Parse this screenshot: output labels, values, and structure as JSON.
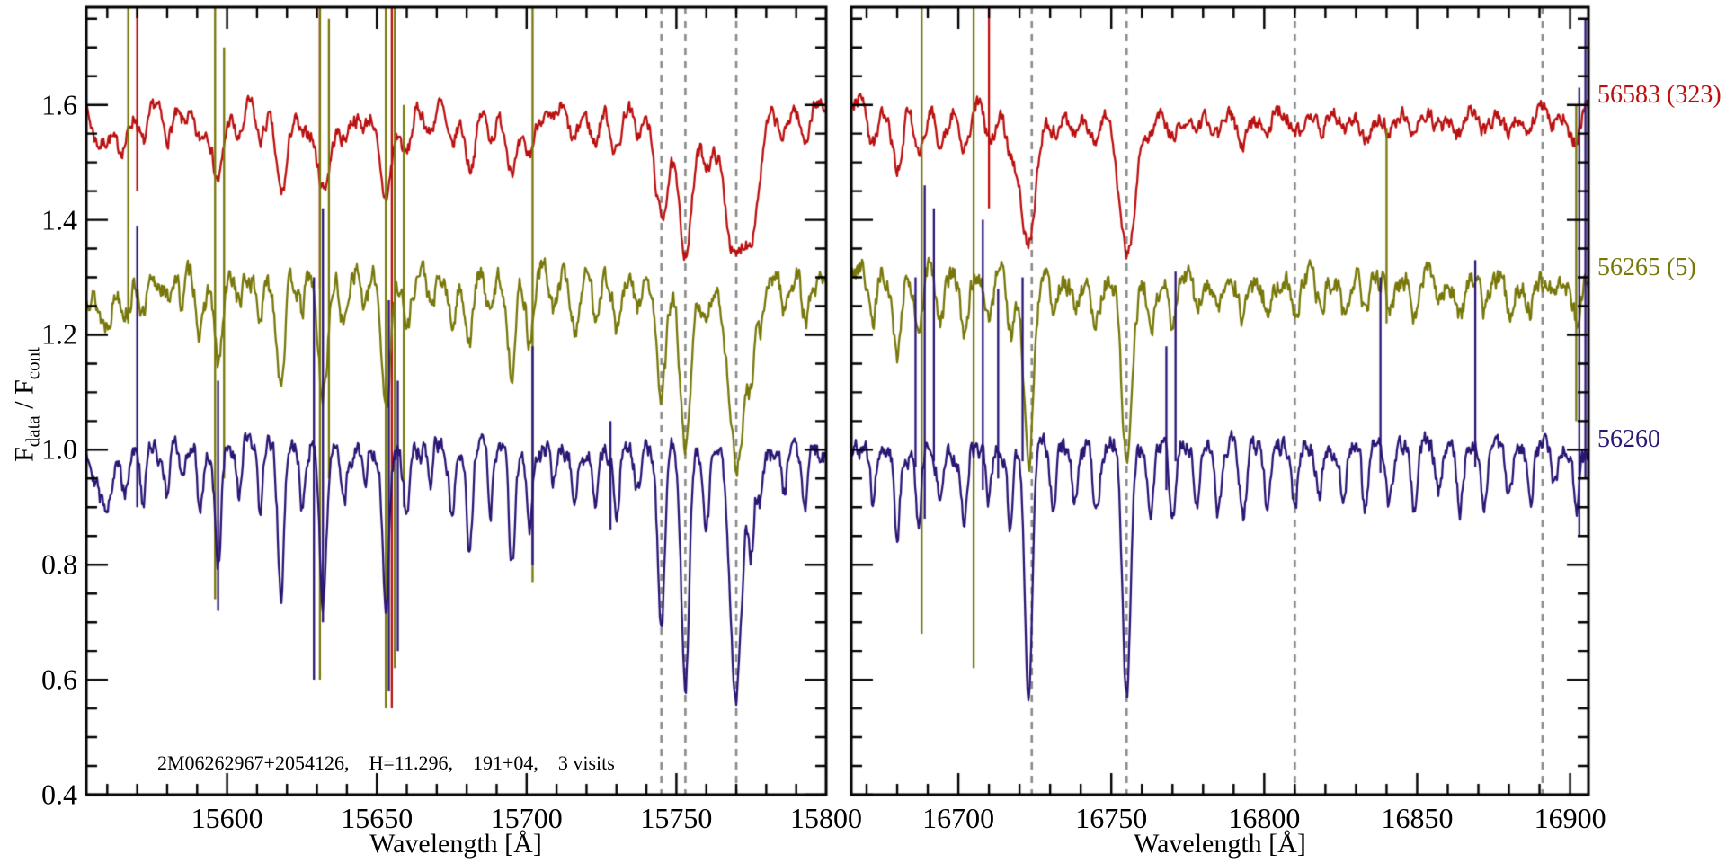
{
  "annotation": {
    "text": "2M06262967+2054126,    H=11.296,    191+04,    3 visits"
  },
  "colors": {
    "red": "#bb1010",
    "olive": "#77770a",
    "navy": "#2b1575",
    "dashed": "#8a8a8a",
    "axis": "#000000",
    "background": "#ffffff"
  },
  "ylabel_parts": {
    "f1": "F",
    "sub1": "data",
    "mid": " / F",
    "sub2": "cont"
  },
  "chart_data": {
    "type": "line",
    "title": "",
    "xlabel": "Wavelength [Å]",
    "ylabel": "F_data / F_cont",
    "ylim": [
      0.4,
      1.77
    ],
    "y_major_step": 0.2,
    "y_minor_step": 0.05,
    "x_major_step": 50,
    "x_minor_step": 10,
    "y_tick_labels": [
      "0.4",
      "0.6",
      "0.8",
      "1.0",
      "1.2",
      "1.4",
      "1.6"
    ],
    "grid": false,
    "legend_position": "right-margin",
    "panels": [
      {
        "xlim": [
          15553,
          15800
        ],
        "x_tick_labels": [
          "15600",
          "15650",
          "15700",
          "15750",
          "15800"
        ],
        "dashed_lines": [
          15745,
          15753,
          15770
        ],
        "lines": [
          [
            15559,
            0.1,
            2.2
          ],
          [
            15566,
            0.08,
            1.2
          ],
          [
            15572,
            0.1,
            0.8
          ],
          [
            15580,
            0.07,
            0.8
          ],
          [
            15585,
            0.06,
            0.7
          ],
          [
            15591,
            0.12,
            0.9
          ],
          [
            15597,
            0.2,
            1.0
          ],
          [
            15604,
            0.08,
            0.8
          ],
          [
            15611,
            0.1,
            0.8
          ],
          [
            15618,
            0.24,
            1.0
          ],
          [
            15625,
            0.09,
            0.8
          ],
          [
            15632,
            0.26,
            1.2
          ],
          [
            15639,
            0.1,
            0.8
          ],
          [
            15646,
            0.07,
            0.8
          ],
          [
            15653,
            0.28,
            1.1
          ],
          [
            15660,
            0.12,
            0.9
          ],
          [
            15668,
            0.08,
            0.8
          ],
          [
            15675,
            0.11,
            0.9
          ],
          [
            15681,
            0.16,
            0.9
          ],
          [
            15688,
            0.1,
            0.8
          ],
          [
            15695,
            0.2,
            1.0
          ],
          [
            15701,
            0.14,
            0.9
          ],
          [
            15709,
            0.07,
            0.8
          ],
          [
            15716,
            0.11,
            0.9
          ],
          [
            15723,
            0.09,
            0.8
          ],
          [
            15730,
            0.13,
            1.0
          ],
          [
            15737,
            0.07,
            0.8
          ],
          [
            15745,
            0.3,
            1.2
          ],
          [
            15753,
            0.42,
            1.3
          ],
          [
            15760,
            0.12,
            1.0
          ],
          [
            15770,
            0.44,
            2.0
          ],
          [
            15775,
            0.16,
            0.9
          ],
          [
            15778,
            0.1,
            1.0
          ],
          [
            15786,
            0.08,
            0.9
          ],
          [
            15793,
            0.1,
            0.9
          ]
        ]
      },
      {
        "xlim": [
          16665,
          16906
        ],
        "x_tick_labels": [
          "16700",
          "16750",
          "16800",
          "16850",
          "16900"
        ],
        "dashed_lines": [
          16724,
          16755,
          16810,
          16891
        ],
        "lines": [
          [
            16672,
            0.1,
            0.9
          ],
          [
            16680,
            0.16,
            0.9
          ],
          [
            16687,
            0.14,
            0.9
          ],
          [
            16694,
            0.1,
            0.9
          ],
          [
            16702,
            0.12,
            0.9
          ],
          [
            16710,
            0.1,
            0.9
          ],
          [
            16717,
            0.12,
            0.9
          ],
          [
            16723,
            0.42,
            1.2
          ],
          [
            16731,
            0.1,
            0.9
          ],
          [
            16738,
            0.08,
            0.9
          ],
          [
            16745,
            0.12,
            1.0
          ],
          [
            16755,
            0.43,
            1.3
          ],
          [
            16763,
            0.1,
            0.9
          ],
          [
            16770,
            0.12,
            0.9
          ],
          [
            16778,
            0.08,
            0.9
          ],
          [
            16785,
            0.1,
            0.9
          ],
          [
            16793,
            0.12,
            1.0
          ],
          [
            16801,
            0.08,
            0.9
          ],
          [
            16810,
            0.1,
            1.0
          ],
          [
            16818,
            0.07,
            0.9
          ],
          [
            16826,
            0.09,
            0.9
          ],
          [
            16833,
            0.11,
            0.9
          ],
          [
            16841,
            0.08,
            0.9
          ],
          [
            16849,
            0.1,
            0.9
          ],
          [
            16857,
            0.07,
            0.9
          ],
          [
            16864,
            0.09,
            0.9
          ],
          [
            16872,
            0.1,
            0.9
          ],
          [
            16880,
            0.08,
            0.9
          ],
          [
            16887,
            0.09,
            0.9
          ],
          [
            16895,
            0.06,
            1.0
          ],
          [
            16902,
            0.1,
            0.9
          ]
        ]
      }
    ],
    "series": [
      {
        "label": "56583 (323)",
        "color": "#bb1010",
        "continuum": 1.6,
        "depth_scale": 0.6,
        "sigma_mult": 2.0,
        "noise": 0.012,
        "seed": 7,
        "spikes": {
          "left": [
            [
              15570,
              1.45,
              1.8
            ],
            [
              15631,
              1.28,
              1.8
            ],
            [
              15655,
              0.55,
              1.8
            ]
          ],
          "right": [
            [
              16710,
              1.42,
              1.8
            ],
            [
              16906,
              1.25,
              1.8
            ]
          ]
        }
      },
      {
        "label": "56265 (5)",
        "color": "#77770a",
        "continuum": 1.3,
        "depth_scale": 0.75,
        "sigma_mult": 1.35,
        "noise": 0.017,
        "seed": 13,
        "spikes": {
          "left": [
            [
              15567,
              1.22,
              1.8
            ],
            [
              15596,
              0.74,
              1.8
            ],
            [
              15599,
              0.95,
              1.7
            ],
            [
              15631,
              0.6,
              1.8
            ],
            [
              15634,
              0.95,
              1.75
            ],
            [
              15653,
              0.55,
              1.8
            ],
            [
              15656,
              0.62,
              1.78
            ],
            [
              15659,
              0.9,
              1.6
            ],
            [
              15702,
              0.77,
              1.8
            ]
          ],
          "right": [
            [
              16688,
              0.68,
              1.8
            ],
            [
              16705,
              0.62,
              1.8
            ],
            [
              16840,
              1.22,
              1.56
            ],
            [
              16902,
              1.05,
              1.6
            ]
          ]
        }
      },
      {
        "label": "56260",
        "color": "#2b1575",
        "continuum": 1.0,
        "depth_scale": 1.0,
        "sigma_mult": 1.0,
        "noise": 0.015,
        "seed": 29,
        "spikes": {
          "left": [
            [
              15570,
              0.9,
              1.39
            ],
            [
              15597,
              0.72,
              1.12
            ],
            [
              15629,
              0.6,
              1.3
            ],
            [
              15632,
              0.7,
              1.42
            ],
            [
              15654,
              0.58,
              1.26
            ],
            [
              15657,
              0.65,
              1.12
            ],
            [
              15702,
              0.8,
              1.18
            ],
            [
              15728,
              0.86,
              1.05
            ]
          ],
          "right": [
            [
              16686,
              0.97,
              1.3
            ],
            [
              16689,
              0.88,
              1.46
            ],
            [
              16692,
              0.98,
              1.42
            ],
            [
              16708,
              0.93,
              1.4
            ],
            [
              16713,
              0.95,
              1.28
            ],
            [
              16721,
              0.98,
              1.3
            ],
            [
              16768,
              0.93,
              1.18
            ],
            [
              16771,
              0.98,
              1.31
            ],
            [
              16838,
              0.96,
              1.3
            ],
            [
              16869,
              0.97,
              1.33
            ],
            [
              16903,
              0.85,
              1.63
            ],
            [
              16905,
              0.95,
              1.75
            ]
          ]
        }
      }
    ]
  }
}
